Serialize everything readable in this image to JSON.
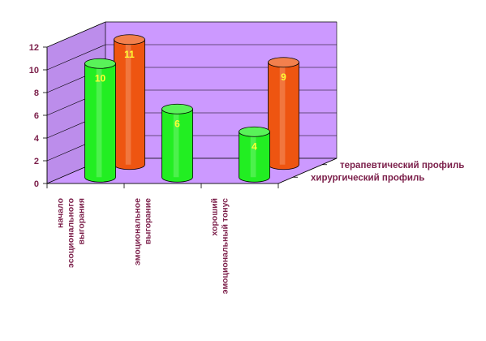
{
  "chart_data": {
    "type": "bar",
    "style": "3d-cylinder",
    "categories": [
      [
        "начало",
        "эсоционального",
        "выгорания"
      ],
      [
        "эмоциональное",
        "выгорание"
      ],
      [
        "хороший",
        "эмоциональный тонус"
      ]
    ],
    "series": [
      {
        "name": "хирургический профиль",
        "values": [
          10,
          6,
          4
        ],
        "color": "#22ee22"
      },
      {
        "name": "терапевтический профиль",
        "values": [
          11,
          null,
          9
        ],
        "color": "#ee5511"
      }
    ],
    "y_ticks": [
      "0",
      "2",
      "4",
      "6",
      "8",
      "10",
      "12"
    ],
    "ylim": [
      0,
      12
    ],
    "grid": true,
    "wall_color": "#cc99ff",
    "floor_color": "#cc99ff",
    "label_color": "#7b1f4a",
    "data_label_color": "#ffff33"
  }
}
